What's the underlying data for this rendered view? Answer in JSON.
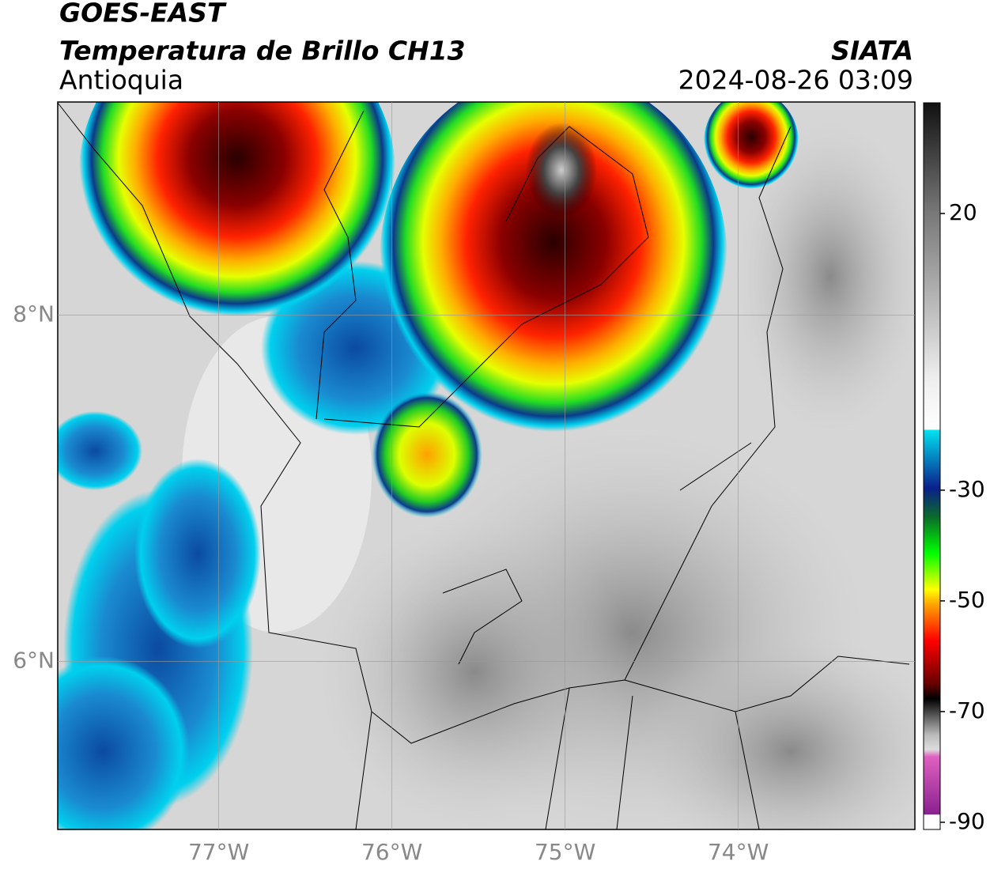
{
  "header": {
    "title": "GOES-EAST",
    "subtitle": "Temperatura de Brillo CH13",
    "region": "Antioquia",
    "source": "SIATA",
    "datetime": "2024-08-26 03:09"
  },
  "map": {
    "xlim": [
      -77.93,
      -72.98
    ],
    "ylim": [
      5.03,
      9.23
    ],
    "xticks": [
      {
        "value": -77,
        "label": "77°W"
      },
      {
        "value": -76,
        "label": "76°W"
      },
      {
        "value": -75,
        "label": "75°W"
      },
      {
        "value": -74,
        "label": "74°W"
      }
    ],
    "yticks": [
      {
        "value": 6,
        "label": "6°N"
      },
      {
        "value": 8,
        "label": "8°N"
      }
    ],
    "grid": true
  },
  "colorbar": {
    "lim": [
      -91.3,
      40
    ],
    "ticks": [
      -90,
      -70,
      -50,
      -30,
      20
    ]
  }
}
